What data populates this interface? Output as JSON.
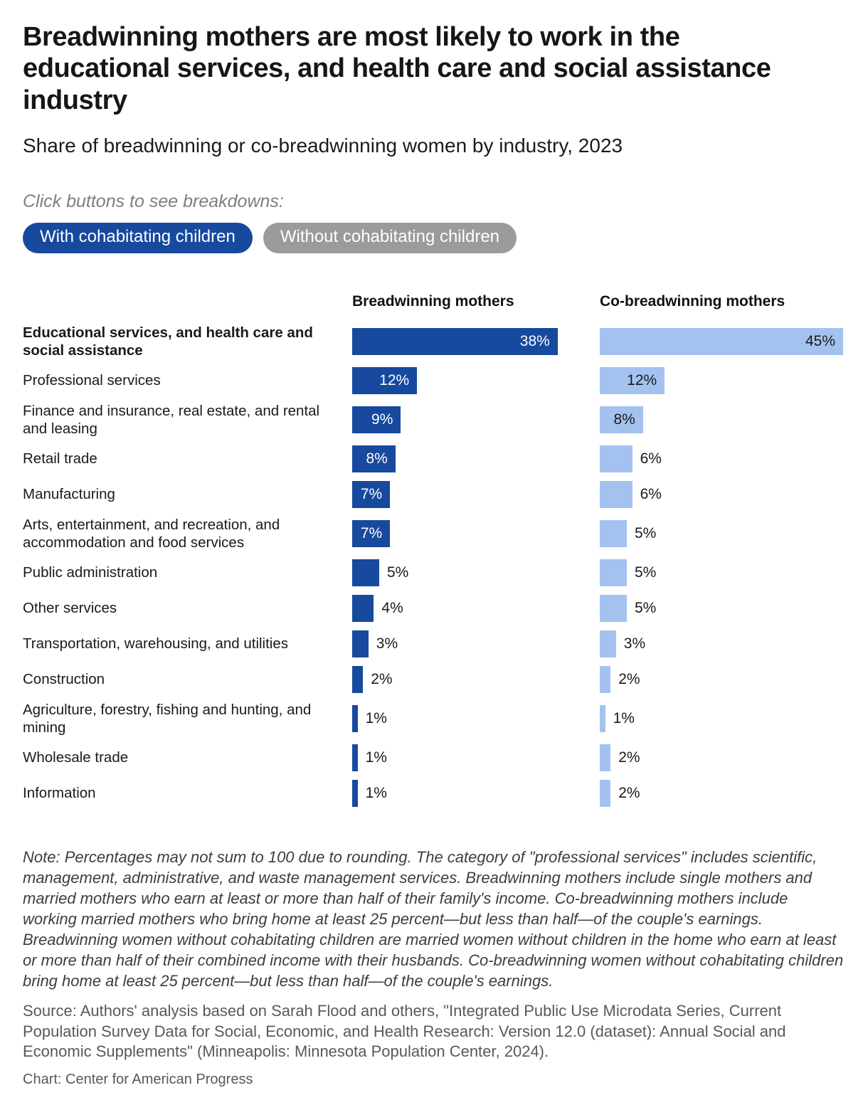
{
  "header": {
    "title": "Breadwinning mothers are most likely to work in the educational services, and health care and social assistance industry",
    "subtitle": "Share of breadwinning or co-breadwinning women by industry, 2023",
    "buttons_hint": "Click buttons to see breakdowns:",
    "buttons": [
      {
        "label": "With cohabitating children",
        "active": true
      },
      {
        "label": "Without cohabitating children",
        "active": false
      }
    ]
  },
  "colors": {
    "active_button": "#17499e",
    "inactive_button": "#9b9b9b",
    "breadwinning_bar": "#17499e",
    "cobreadwinning_bar": "#a4c2f0",
    "inside_label_on_dark": "#ffffff",
    "text": "#1a1a1a"
  },
  "chart_data": {
    "type": "bar",
    "orientation": "horizontal",
    "title": "Share of breadwinning or co-breadwinning women by industry, 2023",
    "value_suffix": "%",
    "xmax": 45,
    "inside_label_min": 7,
    "bold_category_index": 0,
    "legend_position": "column-headers",
    "grid": false,
    "categories": [
      "Educational services, and health care and social assistance",
      "Professional services",
      "Finance and insurance, real estate, and rental and leasing",
      "Retail trade",
      "Manufacturing",
      "Arts, entertainment, and recreation, and accommodation and food services",
      "Public administration",
      "Other services",
      "Transportation, warehousing, and utilities",
      "Construction",
      "Agriculture, forestry, fishing and hunting, and mining",
      "Wholesale trade",
      "Information"
    ],
    "series": [
      {
        "name": "Breadwinning mothers",
        "color": "#17499e",
        "values": [
          38,
          12,
          9,
          8,
          7,
          7,
          5,
          4,
          3,
          2,
          1,
          1,
          1
        ]
      },
      {
        "name": "Co-breadwinning mothers",
        "color": "#a4c2f0",
        "values": [
          45,
          12,
          8,
          6,
          6,
          5,
          5,
          5,
          3,
          2,
          1,
          2,
          2
        ]
      }
    ]
  },
  "footer": {
    "note": "Note: Percentages may not sum to 100 due to rounding. The category of \"professional services\" includes scientific, management, administrative, and waste management services. Breadwinning mothers include single mothers and married mothers who earn at least or more than half of their family's income. Co-breadwinning mothers include working married mothers who bring home at least 25 percent—but less than half—of the couple's earnings. Breadwinning women without cohabitating children are married women without children in the home who earn at least or more than half of their combined income with their husbands. Co-breadwinning women without cohabitating children bring home at least 25 percent—but less than half—of the couple's earnings.",
    "source": "Source: Authors' analysis based on Sarah Flood and others, \"Integrated Public Use Microdata Series, Current Population Survey Data for Social, Economic, and Health Research: Version 12.0 (dataset): Annual Social and Economic Supplements\" (Minneapolis: Minnesota Population Center, 2024).",
    "credit": "Chart: Center for American Progress"
  }
}
